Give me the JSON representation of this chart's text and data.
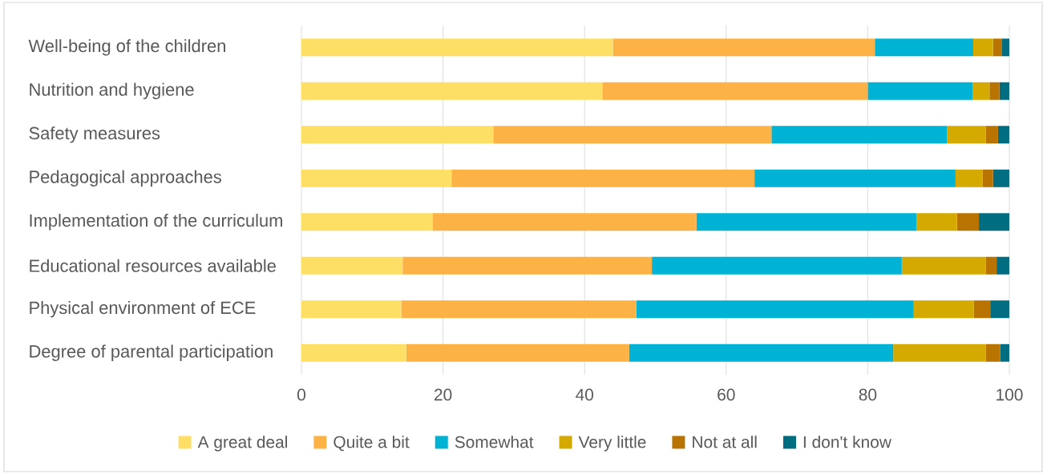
{
  "chart_data": {
    "type": "bar",
    "orientation": "horizontal",
    "stacked": true,
    "categories": [
      "Well-being of the children",
      "Nutrition and hygiene",
      "Safety measures",
      "Pedagogical approaches",
      "Implementation of the curriculum",
      "Educational resources available",
      "Physical environment of ECE",
      "Degree of parental participation"
    ],
    "series": [
      {
        "name": "A great deal",
        "color": "#fddf66",
        "values": [
          44,
          42.5,
          27.1,
          21.2,
          18.5,
          14.3,
          14.1,
          14.8
        ]
      },
      {
        "name": "Quite a bit",
        "color": "#fcb245",
        "values": [
          37,
          37.5,
          39.3,
          42.8,
          37.3,
          35.2,
          33.2,
          31.5
        ]
      },
      {
        "name": "Somewhat",
        "color": "#00b2d4",
        "values": [
          13.9,
          14.8,
          24.8,
          28.4,
          31.1,
          35.3,
          39.2,
          37.3
        ]
      },
      {
        "name": "Very little",
        "color": "#d4aa00",
        "values": [
          2.8,
          2.4,
          5.5,
          3.8,
          5.7,
          11.9,
          8.5,
          13.1
        ]
      },
      {
        "name": "Not at all",
        "color": "#b97300",
        "values": [
          1.2,
          1.4,
          1.7,
          1.5,
          3.1,
          1.5,
          2.3,
          2.0
        ]
      },
      {
        "name": "I don't know",
        "color": "#006e80",
        "values": [
          1.1,
          1.4,
          1.6,
          2.3,
          4.3,
          1.8,
          2.7,
          1.3
        ]
      }
    ],
    "xlim": [
      0,
      100
    ],
    "xticks": [
      0,
      20,
      40,
      60,
      80,
      100
    ],
    "grid": "x",
    "legend": "bottom"
  }
}
